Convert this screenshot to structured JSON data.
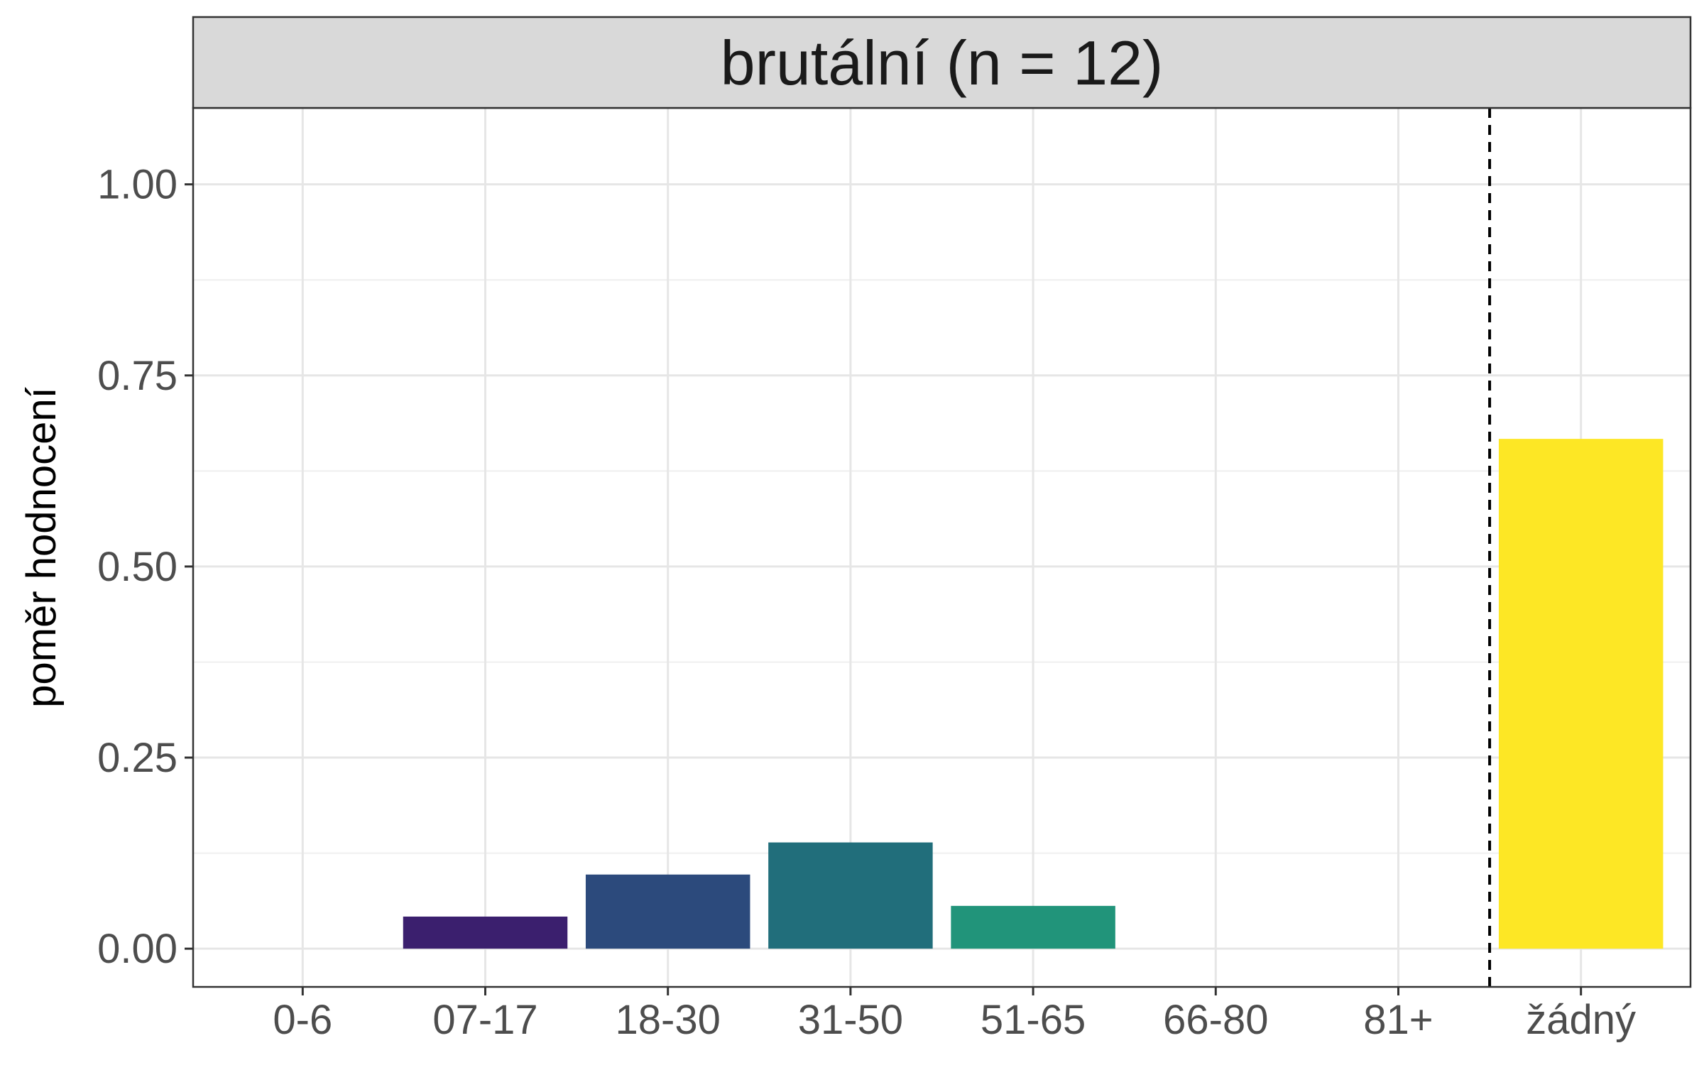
{
  "chart_data": {
    "type": "bar",
    "facet_title": "brutální (n = 12)",
    "title": "",
    "xlabel": "",
    "ylabel": "poměr hodnocení",
    "categories": [
      "0-6",
      "07-17",
      "18-30",
      "31-50",
      "51-65",
      "66-80",
      "81+",
      "žádný"
    ],
    "values": [
      0.0,
      0.042,
      0.097,
      0.139,
      0.056,
      0.0,
      0.0,
      0.667
    ],
    "colors": [
      "#440154",
      "#3b1f6e",
      "#2c4a7c",
      "#216e7b",
      "#21947a",
      "#5fc362",
      "#a8db33",
      "#fde725"
    ],
    "ylim": [
      -0.05,
      1.1
    ],
    "yticks": [
      0.0,
      0.25,
      0.5,
      0.75,
      1.0
    ],
    "ytick_labels": [
      "0.00",
      "0.25",
      "0.50",
      "0.75",
      "1.00"
    ],
    "reference_line_between": [
      "81+",
      "žádný"
    ],
    "grid": true,
    "legend": "none"
  }
}
